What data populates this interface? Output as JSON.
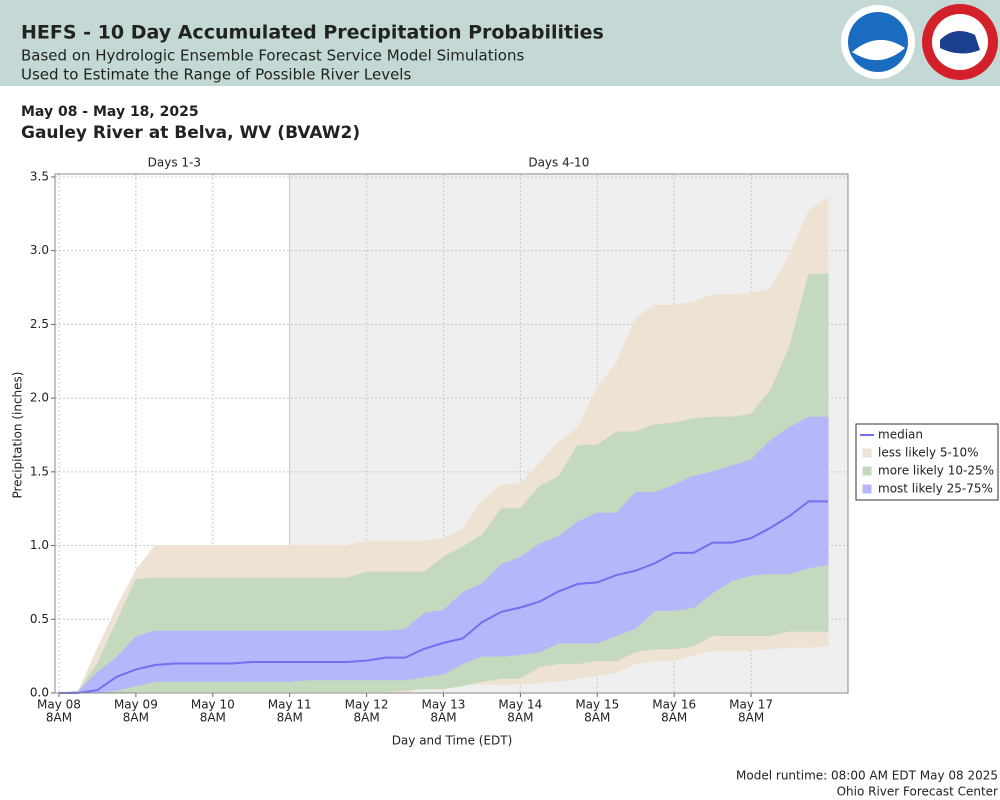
{
  "header": {
    "title": "HEFS - 10 Day Accumulated Precipitation Probabilities",
    "lines": [
      "Based on Hydrologic Ensemble Forecast Service Model Simulations",
      "Used to Estimate the Range of Possible River Levels"
    ]
  },
  "chart_data": {
    "type": "band",
    "date_range": "May 08 - May 18, 2025",
    "title": "Gauley River at Belva, WV (BVAW2)",
    "xlabel": "Day and Time (EDT)",
    "ylabel": "Precipitation (inches)",
    "regions": [
      {
        "label": "Days 1-3",
        "start": "2025-05-08T08:00",
        "end": "2025-05-11T08:00",
        "color": "#ffffff"
      },
      {
        "label": "Days 4-10",
        "start": "2025-05-11T08:00",
        "end": "2025-05-18T08:00",
        "color": "#efefef"
      }
    ],
    "x": [
      "2025-05-08T08:00",
      "2025-05-08T14:00",
      "2025-05-08T20:00",
      "2025-05-09T02:00",
      "2025-05-09T08:00",
      "2025-05-09T14:00",
      "2025-05-09T20:00",
      "2025-05-10T02:00",
      "2025-05-10T08:00",
      "2025-05-10T14:00",
      "2025-05-10T20:00",
      "2025-05-11T02:00",
      "2025-05-11T08:00",
      "2025-05-11T14:00",
      "2025-05-11T20:00",
      "2025-05-12T02:00",
      "2025-05-12T08:00",
      "2025-05-12T14:00",
      "2025-05-12T20:00",
      "2025-05-13T02:00",
      "2025-05-13T08:00",
      "2025-05-13T14:00",
      "2025-05-13T20:00",
      "2025-05-14T02:00",
      "2025-05-14T08:00",
      "2025-05-14T14:00",
      "2025-05-14T20:00",
      "2025-05-15T02:00",
      "2025-05-15T08:00",
      "2025-05-15T14:00",
      "2025-05-15T20:00",
      "2025-05-16T02:00",
      "2025-05-16T08:00",
      "2025-05-16T14:00",
      "2025-05-16T20:00",
      "2025-05-17T02:00",
      "2025-05-17T08:00",
      "2025-05-17T14:00",
      "2025-05-17T20:00",
      "2025-05-18T02:00",
      "2025-05-18T08:00"
    ],
    "xlim": [
      "2025-05-08T06:45",
      "2025-05-18T14:15"
    ],
    "xticks": [
      {
        "value": "2025-05-08T08:00",
        "label": [
          "May 08",
          "8AM"
        ]
      },
      {
        "value": "2025-05-09T08:00",
        "label": [
          "May 09",
          "8AM"
        ]
      },
      {
        "value": "2025-05-10T08:00",
        "label": [
          "May 10",
          "8AM"
        ]
      },
      {
        "value": "2025-05-11T08:00",
        "label": [
          "May 11",
          "8AM"
        ]
      },
      {
        "value": "2025-05-12T08:00",
        "label": [
          "May 12",
          "8AM"
        ]
      },
      {
        "value": "2025-05-13T08:00",
        "label": [
          "May 13",
          "8AM"
        ]
      },
      {
        "value": "2025-05-14T08:00",
        "label": [
          "May 14",
          "8AM"
        ]
      },
      {
        "value": "2025-05-15T08:00",
        "label": [
          "May 15",
          "8AM"
        ]
      },
      {
        "value": "2025-05-16T08:00",
        "label": [
          "May 16",
          "8AM"
        ]
      },
      {
        "value": "2025-05-17T08:00",
        "label": [
          "May 17",
          "8AM"
        ]
      }
    ],
    "ylim": [
      0,
      3.52
    ],
    "yticks": [
      {
        "value": 0,
        "label": "0.0"
      },
      {
        "value": 0.5,
        "label": "0.5"
      },
      {
        "value": 1,
        "label": "1.0"
      },
      {
        "value": 1.5,
        "label": "1.5"
      },
      {
        "value": 2,
        "label": "2.0"
      },
      {
        "value": 2.5,
        "label": "2.5"
      },
      {
        "value": 3,
        "label": "3.0"
      },
      {
        "value": 3.5,
        "label": "3.5"
      }
    ],
    "grid": true,
    "legend": "right",
    "series": [
      {
        "name": "median",
        "color": "#7070f0",
        "values": [
          0,
          0,
          0.02,
          0.11,
          0.16,
          0.19,
          0.2,
          0.2,
          0.2,
          0.2,
          0.21,
          0.21,
          0.21,
          0.21,
          0.21,
          0.21,
          0.22,
          0.24,
          0.24,
          0.3,
          0.34,
          0.37,
          0.48,
          0.55,
          0.58,
          0.62,
          0.69,
          0.74,
          0.75,
          0.8,
          0.83,
          0.88,
          0.95,
          0.95,
          1.02,
          1.02,
          1.05,
          1.12,
          1.2,
          1.3,
          1.3
        ]
      },
      {
        "name": "less likely 5-10%",
        "color": "#eee2d2",
        "low": [
          0,
          0,
          0,
          0,
          0,
          0,
          0,
          0,
          0,
          0,
          0,
          0,
          0,
          0,
          0,
          0,
          0,
          0,
          0,
          0.05,
          0.05,
          0.06,
          0.06,
          0.06,
          0.06,
          0.07,
          0.08,
          0.1,
          0.12,
          0.14,
          0.2,
          0.22,
          0.22,
          0.26,
          0.29,
          0.29,
          0.29,
          0.3,
          0.31,
          0.31,
          0.32
        ],
        "high": [
          0,
          0.01,
          0.3,
          0.58,
          0.83,
          1,
          1,
          1,
          1,
          1,
          1,
          1,
          1,
          1,
          1,
          1,
          1.03,
          1.03,
          1.03,
          1.03,
          1.05,
          1.11,
          1.3,
          1.41,
          1.42,
          1.56,
          1.7,
          1.8,
          2.07,
          2.24,
          2.54,
          2.63,
          2.63,
          2.65,
          2.7,
          2.7,
          2.71,
          2.74,
          2.97,
          3.27,
          3.36
        ]
      },
      {
        "name": "more likely 10-25%",
        "color": "#c5d9bf",
        "low": [
          0,
          0,
          0,
          0,
          0.01,
          0.01,
          0.01,
          0.01,
          0.01,
          0.01,
          0.01,
          0.01,
          0.01,
          0.01,
          0.01,
          0.01,
          0.01,
          0.01,
          0.02,
          0.03,
          0.03,
          0.05,
          0.08,
          0.1,
          0.1,
          0.18,
          0.2,
          0.2,
          0.22,
          0.22,
          0.28,
          0.3,
          0.3,
          0.32,
          0.39,
          0.39,
          0.39,
          0.39,
          0.42,
          0.42,
          0.42
        ],
        "high": [
          0,
          0.01,
          0.2,
          0.48,
          0.77,
          0.78,
          0.78,
          0.78,
          0.78,
          0.78,
          0.78,
          0.78,
          0.78,
          0.78,
          0.78,
          0.78,
          0.82,
          0.82,
          0.82,
          0.82,
          0.92,
          0.99,
          1.07,
          1.25,
          1.25,
          1.4,
          1.47,
          1.68,
          1.68,
          1.77,
          1.77,
          1.82,
          1.83,
          1.86,
          1.87,
          1.87,
          1.89,
          2.05,
          2.34,
          2.84,
          2.84
        ]
      },
      {
        "name": "most likely 25-75%",
        "color": "#b6b6fb",
        "low": [
          0,
          0,
          0,
          0.02,
          0.05,
          0.08,
          0.08,
          0.08,
          0.08,
          0.08,
          0.08,
          0.08,
          0.08,
          0.09,
          0.09,
          0.09,
          0.09,
          0.09,
          0.09,
          0.11,
          0.13,
          0.2,
          0.25,
          0.25,
          0.26,
          0.28,
          0.34,
          0.34,
          0.34,
          0.39,
          0.44,
          0.56,
          0.56,
          0.58,
          0.68,
          0.76,
          0.8,
          0.81,
          0.81,
          0.85,
          0.87
        ],
        "high": [
          0,
          0.01,
          0.14,
          0.24,
          0.38,
          0.42,
          0.42,
          0.42,
          0.42,
          0.42,
          0.42,
          0.42,
          0.42,
          0.42,
          0.42,
          0.42,
          0.42,
          0.42,
          0.43,
          0.54,
          0.56,
          0.68,
          0.74,
          0.87,
          0.92,
          1.01,
          1.06,
          1.16,
          1.22,
          1.22,
          1.36,
          1.36,
          1.41,
          1.47,
          1.5,
          1.54,
          1.58,
          1.71,
          1.8,
          1.87,
          1.87
        ]
      }
    ]
  },
  "footer": [
    "Model runtime: 08:00 AM EDT May 08 2025",
    "Ohio River Forecast Center"
  ]
}
